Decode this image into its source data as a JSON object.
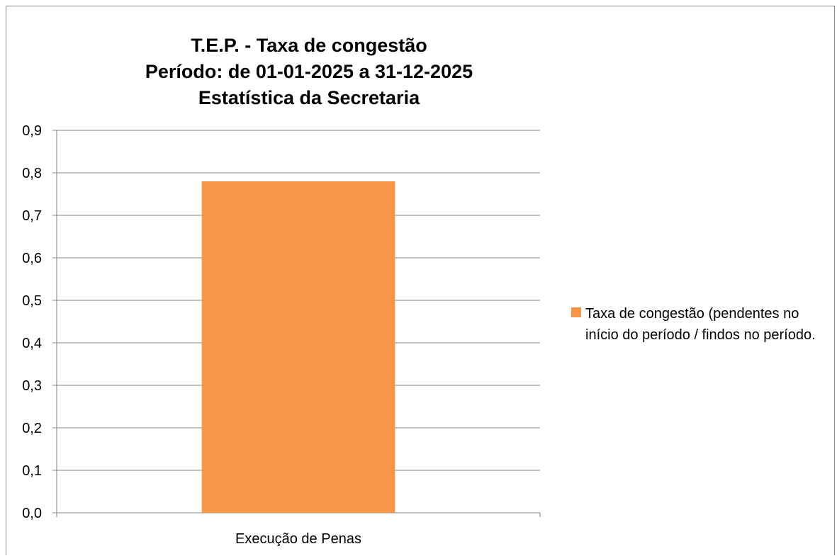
{
  "chart_data": {
    "type": "bar",
    "title_lines": [
      "T.E.P. - Taxa de congestão",
      "Período: de 01-01-2025 a 31-12-2025",
      "Estatística da Secretaria"
    ],
    "categories": [
      "Execução de Penas"
    ],
    "series": [
      {
        "name": "Taxa de congestão (pendentes no início do período / findos no período.",
        "values": [
          0.78
        ],
        "color": "#F79646"
      }
    ],
    "ylim": [
      0,
      0.9
    ],
    "yticks": [
      "0,0",
      "0,1",
      "0,2",
      "0,3",
      "0,4",
      "0,5",
      "0,6",
      "0,7",
      "0,8",
      "0,9"
    ],
    "grid": true,
    "legend": "right"
  }
}
